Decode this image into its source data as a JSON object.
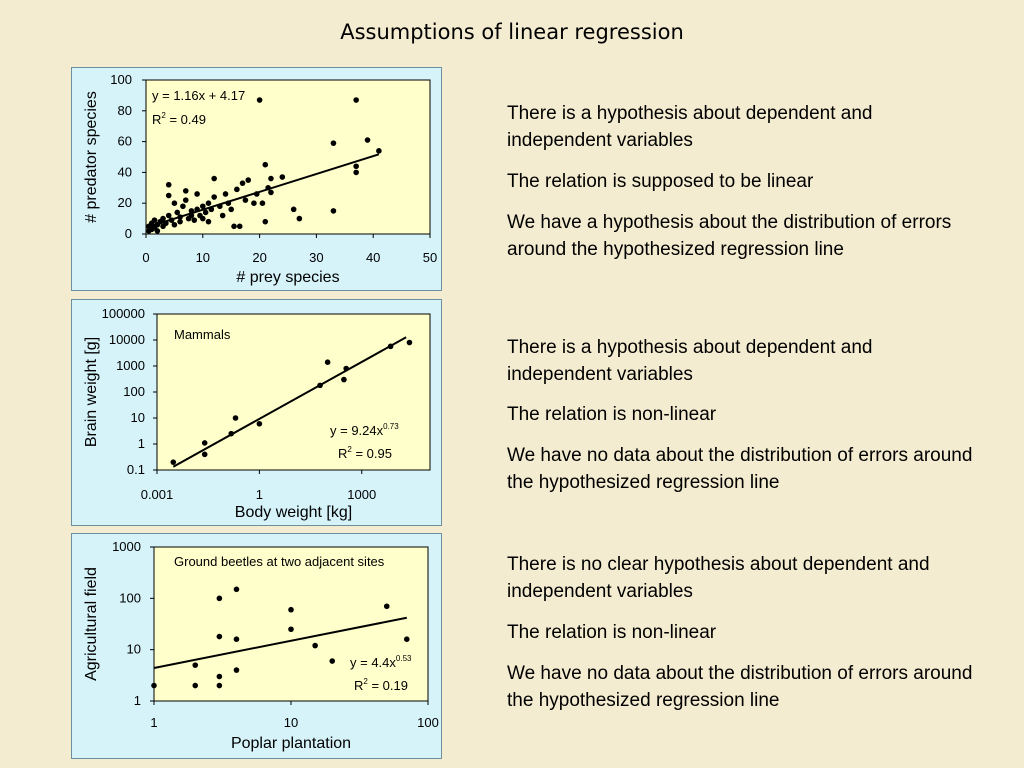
{
  "slide": {
    "title": "Assumptions of linear regression"
  },
  "chart_data": [
    {
      "type": "scatter",
      "xlabel": "# prey species",
      "ylabel": "# predator species",
      "xlim": [
        0,
        50
      ],
      "ylim": [
        0,
        100
      ],
      "xticks": [
        "0",
        "10",
        "20",
        "30",
        "40",
        "50"
      ],
      "yticks": [
        "0",
        "20",
        "40",
        "60",
        "80",
        "100"
      ],
      "grid": false,
      "annotation_eq": "y = 1.16x + 4.17",
      "annotation_r2": "R",
      "annotation_r2_sup": "2",
      "annotation_r2_val": " = 0.49",
      "trendline": {
        "slope": 1.16,
        "intercept": 4.17,
        "x_from": 0,
        "x_to": 41
      },
      "points": [
        [
          0.5,
          2
        ],
        [
          0.5,
          5
        ],
        [
          1,
          3
        ],
        [
          1,
          7
        ],
        [
          1.5,
          4
        ],
        [
          1.5,
          9
        ],
        [
          2,
          6
        ],
        [
          2,
          2
        ],
        [
          2.5,
          8
        ],
        [
          3,
          5
        ],
        [
          3,
          10
        ],
        [
          3.5,
          7
        ],
        [
          4,
          32
        ],
        [
          4,
          25
        ],
        [
          4,
          12
        ],
        [
          4.5,
          9
        ],
        [
          5,
          6
        ],
        [
          5,
          20
        ],
        [
          5.5,
          14
        ],
        [
          6,
          8
        ],
        [
          6,
          11
        ],
        [
          6.5,
          18
        ],
        [
          7,
          28
        ],
        [
          7,
          22
        ],
        [
          7.5,
          10
        ],
        [
          8,
          15
        ],
        [
          8,
          12
        ],
        [
          8.5,
          9
        ],
        [
          9,
          26
        ],
        [
          9,
          16
        ],
        [
          9.5,
          12
        ],
        [
          10,
          10
        ],
        [
          10,
          18
        ],
        [
          10.5,
          14
        ],
        [
          11,
          20
        ],
        [
          11,
          8
        ],
        [
          11.5,
          16
        ],
        [
          12,
          36
        ],
        [
          12,
          24
        ],
        [
          13,
          18
        ],
        [
          13.5,
          12
        ],
        [
          14,
          26
        ],
        [
          14.5,
          20
        ],
        [
          15,
          16
        ],
        [
          15.5,
          5
        ],
        [
          16,
          29
        ],
        [
          16.5,
          5
        ],
        [
          17,
          33
        ],
        [
          17.5,
          22
        ],
        [
          18,
          35
        ],
        [
          19,
          20
        ],
        [
          19.5,
          26
        ],
        [
          20,
          87
        ],
        [
          20.5,
          20
        ],
        [
          21,
          45
        ],
        [
          21,
          8
        ],
        [
          21.5,
          30
        ],
        [
          22,
          27
        ],
        [
          22,
          36
        ],
        [
          24,
          37
        ],
        [
          26,
          16
        ],
        [
          27,
          10
        ],
        [
          33,
          59
        ],
        [
          33,
          15
        ],
        [
          37,
          87
        ],
        [
          37,
          44
        ],
        [
          37,
          40
        ],
        [
          39,
          61
        ],
        [
          41,
          54
        ]
      ]
    },
    {
      "type": "scatter",
      "xlabel": "Body weight [kg]",
      "ylabel": "Brain weight [g]",
      "xscale": "log",
      "yscale": "log",
      "xlim": [
        0.001,
        100000
      ],
      "ylim": [
        0.1,
        100000
      ],
      "xticks": [
        "0.001",
        "1",
        "1000"
      ],
      "yticks": [
        "0.1",
        "1",
        "10",
        "100",
        "1000",
        "10000",
        "100000"
      ],
      "grid": false,
      "inset_label": "Mammals",
      "annotation_eq": "y = 9.24x",
      "annotation_eq_sup": "0.73",
      "annotation_r2": "R",
      "annotation_r2_sup": "2",
      "annotation_r2_val": " = 0.95",
      "trendline": {
        "coef": 9.24,
        "exp": 0.73,
        "x_from": 0.003,
        "x_to": 20000
      },
      "points": [
        [
          0.003,
          0.2
        ],
        [
          0.025,
          1.1
        ],
        [
          0.025,
          0.4
        ],
        [
          0.15,
          2.5
        ],
        [
          0.2,
          10
        ],
        [
          1,
          6
        ],
        [
          60,
          180
        ],
        [
          100,
          1400
        ],
        [
          300,
          300
        ],
        [
          350,
          800
        ],
        [
          7000,
          5700
        ],
        [
          25000,
          8000
        ]
      ]
    },
    {
      "type": "scatter",
      "xlabel": "Poplar plantation",
      "ylabel": "Agricultural field",
      "xscale": "log",
      "yscale": "log",
      "xlim": [
        1,
        100
      ],
      "ylim": [
        1,
        1000
      ],
      "xticks": [
        "1",
        "10",
        "100"
      ],
      "yticks": [
        "1",
        "10",
        "100",
        "1000"
      ],
      "grid": false,
      "inset_label": "Ground beetles at two adjacent sites",
      "annotation_eq": "y = 4.4x",
      "annotation_eq_sup": "0.53",
      "annotation_r2": "R",
      "annotation_r2_sup": "2",
      "annotation_r2_val": " = 0.19",
      "trendline": {
        "coef": 4.4,
        "exp": 0.53,
        "x_from": 1,
        "x_to": 70
      },
      "points": [
        [
          1,
          2
        ],
        [
          2,
          5
        ],
        [
          2,
          2
        ],
        [
          3,
          100
        ],
        [
          3,
          18
        ],
        [
          3,
          3
        ],
        [
          3,
          2
        ],
        [
          4,
          150
        ],
        [
          4,
          16
        ],
        [
          4,
          4
        ],
        [
          10,
          60
        ],
        [
          10,
          25
        ],
        [
          15,
          12
        ],
        [
          20,
          6
        ],
        [
          50,
          70
        ],
        [
          70,
          16
        ]
      ]
    }
  ],
  "bullets": [
    [
      "There is a hypothesis about dependent and independent variables",
      "The relation is supposed to be linear",
      "We have a hypothesis about the distribution of errors around the hypothesized regression line"
    ],
    [
      "There is a hypothesis about dependent and independent variables",
      "The relation is non-linear",
      "We have no data about the distribution of errors around the hypothesized regression line"
    ],
    [
      "There is no clear  hypothesis about dependent and independent variables",
      "The relation is non-linear",
      "We have no data about the distribution of errors around the hypothesized regression line"
    ]
  ],
  "colors": {
    "panel_bg": "#d6f3fa",
    "plot_bg": "#ffffcc",
    "slide_bg": "#f4ecd0",
    "marker": "#000000"
  }
}
